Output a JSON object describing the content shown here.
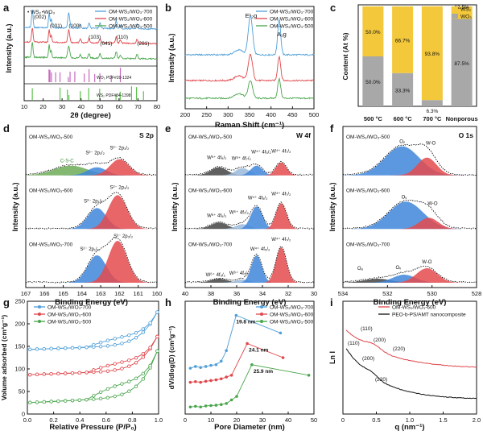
{
  "colors": {
    "c700": "#4f9fd8",
    "c600": "#e0464b",
    "c500": "#48a54a",
    "wo3": "#f3c83b",
    "ws2": "#a8a8a8",
    "wo3_pdf": "#c86ac0",
    "ws2_pdf": "#5ac24a",
    "blue_fill": "#3f86d9",
    "red_fill": "#e44a4d",
    "green_fill": "#6cab57",
    "dark_fill": "#444444"
  },
  "panel_letters": [
    "a",
    "b",
    "c",
    "d",
    "e",
    "f",
    "g",
    "h",
    "i"
  ],
  "samples": {
    "s700": "OM-WS₂/WO₃-700",
    "s600": "OM-WS₂/WO₃-600",
    "s500": "OM-WS₂/WO₃-500"
  },
  "chart_data": [
    {
      "id": "a",
      "type": "line",
      "xlabel": "2θ (degree)",
      "ylabel": "Intensity (a.u.)",
      "xlim": [
        10,
        80
      ],
      "xticks": [
        "10",
        "20",
        "30",
        "40",
        "50",
        "60",
        "70",
        "80"
      ],
      "legend": [
        "OM-WS₂/WO₃-700",
        "OM-WS₂/WO₃-600",
        "OM-WS₂/WO₃-500"
      ],
      "markers": {
        "ws2_label": "• WS₂",
        "wo3_label": "•WO₃"
      },
      "peak_labels": [
        {
          "text": "(002)",
          "x": 14.3
        },
        {
          "text": "(001)",
          "x": 23.5
        },
        {
          "text": "(100)",
          "x": 33.5
        },
        {
          "text": "(103)",
          "x": 44.0
        },
        {
          "text": "(041)",
          "x": 50.0
        },
        {
          "text": "(110)",
          "x": 58.5
        },
        {
          "text": "(201)",
          "x": 69.5
        }
      ],
      "reference_cards": [
        "WO₃ PDF#20-1324",
        "WS₂ PDF#84-1398"
      ],
      "wo3_ref_lines": [
        23.1,
        23.6,
        24.4,
        26.6,
        28.9,
        33.3,
        34.2,
        36.7,
        41.7,
        44.2,
        47.2,
        49.9,
        55.9,
        60.7
      ],
      "ws2_ref_lines": [
        14.3,
        28.9,
        32.8,
        33.6,
        39.6,
        44.0,
        49.8,
        58.4,
        60.6,
        66.6,
        69.2,
        72.9
      ]
    },
    {
      "id": "b",
      "type": "line",
      "xlabel": "Raman Shift (cm⁻¹)",
      "ylabel": "Intensity (a.u.)",
      "xlim": [
        200,
        500
      ],
      "xticks": [
        "200",
        "250",
        "300",
        "350",
        "400",
        "450",
        "500"
      ],
      "legend": [
        "OM-WS₂/WO₃-700",
        "OM-WS₂/WO₃-600",
        "OM-WS₂/WO₃-500"
      ],
      "peaks": [
        {
          "label": "E¹₂g",
          "x": 352
        },
        {
          "label": "A₁g",
          "x": 419
        }
      ]
    },
    {
      "id": "c",
      "type": "bar",
      "stacked": true,
      "ylabel": "Content (At %)",
      "categories": [
        "500 °C",
        "600 °C",
        "700 °C",
        "Nonporous"
      ],
      "series": [
        {
          "name": "WO₃",
          "values": [
            50.0,
            33.3,
            6.3,
            87.5
          ]
        },
        {
          "name": "WS₂",
          "values": [
            50.0,
            66.7,
            93.8,
            12.5
          ]
        }
      ],
      "data_labels": {
        "WO3": [
          "50.0%",
          "33.3%",
          "6.3%",
          "87.5%"
        ],
        "WS2": [
          "50.0%",
          "66.7%",
          "93.8%",
          "12.5%"
        ]
      },
      "legend": [
        "WS₂",
        "WO₃"
      ],
      "ylim": [
        0,
        100
      ]
    },
    {
      "id": "d",
      "type": "line",
      "title": "S 2p",
      "xlabel": "Binding Energy (eV)",
      "ylabel": "Intensity (a.u.)",
      "xlim": [
        167,
        160
      ],
      "xticks": [
        "167",
        "166",
        "165",
        "164",
        "163",
        "162",
        "161",
        "160"
      ],
      "rows": [
        {
          "sample": "OM-WS₂/WO₃-500",
          "labels": [
            "C-S-C",
            "S²⁻ 2p₁/₂",
            "S²⁻ 2p₃/₂"
          ]
        },
        {
          "sample": "OM-WS₂/WO₃-600",
          "labels": [
            "S²⁻ 2p₁/₂",
            "S²⁻ 2p₃/₂"
          ]
        },
        {
          "sample": "OM-WS₂/WO₃-700",
          "labels": [
            "S²⁻ 2p₁/₂",
            "S²⁻ 2p₃/₂"
          ]
        }
      ]
    },
    {
      "id": "e",
      "type": "line",
      "title": "W 4f",
      "xlabel": "Binding Energy (eV)",
      "ylabel": "Intensity (a.u.)",
      "xlim": [
        41,
        30
      ],
      "xticks": [
        "40",
        "38",
        "36",
        "34",
        "32",
        "30"
      ],
      "rows": [
        {
          "sample": "OM-WS₂/WO₃-500",
          "labels": [
            "W⁶⁺ 4f₅/₂",
            "W⁶⁺ 4f₇/₂",
            "W⁴⁺ 4f₅/₂",
            "W⁴⁺ 4f₇/₂"
          ]
        },
        {
          "sample": "OM-WS₂/WO₃-600",
          "labels": [
            "W⁶⁺ 4f₅/₂",
            "W⁶⁺ 4f₇/₂",
            "W⁴⁺ 4f₅/₂",
            "W⁴⁺ 4f₇/₂"
          ]
        },
        {
          "sample": "OM-WS₂/WO₃-700",
          "labels": [
            "W⁶⁺ 4f₅/₂",
            "W⁶⁺ 4f₇/₂",
            "W⁴⁺ 4f₅/₂",
            "W⁴⁺ 4f₇/₂"
          ]
        }
      ]
    },
    {
      "id": "f",
      "type": "line",
      "title": "O 1s",
      "xlabel": "Binding Energy (eV)",
      "ylabel": "Intensity (a.u.)",
      "xlim": [
        535,
        528
      ],
      "xticks": [
        "534",
        "532",
        "530",
        "528"
      ],
      "rows": [
        {
          "sample": "OM-WS₂/WO₃-500",
          "labels": [
            "Oᵥ",
            "W-O"
          ]
        },
        {
          "sample": "OM-WS₂/WO₃-600",
          "labels": [
            "Oᵥ",
            "W-O"
          ]
        },
        {
          "sample": "OM-WS₂/WO₃-700",
          "labels": [
            "Oₐ",
            "Oᵥ",
            "W-O"
          ]
        }
      ]
    },
    {
      "id": "g",
      "type": "line",
      "xlabel": "Relative Pressure (P/P₀)",
      "ylabel": "Volume adsorbed (cm³g⁻¹)",
      "xlim": [
        0,
        1
      ],
      "ylim": [
        0,
        250
      ],
      "xticks": [
        "0.0",
        "0.2",
        "0.4",
        "0.6",
        "0.8",
        "1.0"
      ],
      "yticks": [
        "0",
        "50",
        "100",
        "150",
        "200",
        "250"
      ],
      "legend": [
        "OM-WS₂/WO₃-700",
        "OM-WS₂/WO₃-600",
        "OM-WS₂/WO₃-500"
      ],
      "series": [
        {
          "name": "OM-WS₂/WO₃-700",
          "start": 143,
          "end": 232
        },
        {
          "name": "OM-WS₂/WO₃-600",
          "start": 87,
          "end": 178
        },
        {
          "name": "OM-WS₂/WO₃-500",
          "start": 25,
          "end": 148
        }
      ]
    },
    {
      "id": "h",
      "type": "line",
      "xlabel": "Pore Diameter (nm)",
      "ylabel": "dV/dlog(D) (cm³g⁻¹)",
      "xlim": [
        0,
        50
      ],
      "xticks": [
        "0",
        "10",
        "20",
        "30",
        "40",
        "50"
      ],
      "legend": [
        "OM-WS₂/WO₃-700",
        "OM-WS₂/WO₃-600",
        "OM-WS₂/WO₃-500"
      ],
      "peak_labels": [
        "19.8 nm",
        "24.1 nm",
        "25.9 nm"
      ],
      "series": [
        {
          "name": "700",
          "x": [
            2,
            4,
            6,
            8,
            10,
            12,
            14,
            16,
            19.8,
            37
          ],
          "y": [
            0.13,
            0.135,
            0.132,
            0.135,
            0.138,
            0.14,
            0.15,
            0.18,
            0.28,
            0.23
          ]
        },
        {
          "name": "600",
          "x": [
            2,
            4,
            6,
            8,
            10,
            12,
            14,
            16,
            18,
            24.1,
            38
          ],
          "y": [
            0.09,
            0.092,
            0.09,
            0.093,
            0.095,
            0.097,
            0.1,
            0.105,
            0.11,
            0.2,
            0.16
          ]
        },
        {
          "name": "500",
          "x": [
            2,
            4,
            6,
            8,
            10,
            12,
            14,
            16,
            18,
            20,
            25.9,
            48
          ],
          "y": [
            0.02,
            0.022,
            0.02,
            0.023,
            0.024,
            0.025,
            0.027,
            0.03,
            0.04,
            0.05,
            0.14,
            0.11
          ]
        }
      ]
    },
    {
      "id": "i",
      "type": "line",
      "xlabel": "q (nm⁻¹)",
      "ylabel": "Ln I",
      "xlim": [
        0,
        2
      ],
      "xticks": [
        "0",
        "0.5",
        "1.0",
        "1.5",
        "2.0"
      ],
      "legend": [
        "OM-WS₂/WO₃-600",
        "PEO-b-PS/AMT nanocomposite"
      ],
      "labels_red": [
        "(110)",
        "(200)",
        "(220)"
      ],
      "labels_black": [
        "(110)",
        "(200)",
        "(220)"
      ]
    }
  ]
}
